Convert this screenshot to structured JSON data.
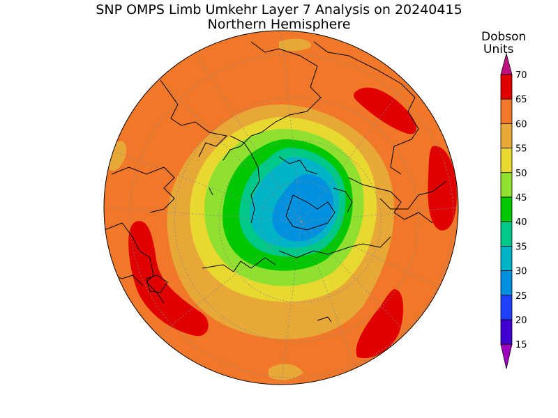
{
  "title": "SNP OMPS Limb Umkehr Layer 7 Analysis on 20240415",
  "subtitle": "Northern Hemisphere",
  "colorbar": {
    "label_line1": "Dobson",
    "label_line2": "Units",
    "ticks": [
      "70",
      "65",
      "60",
      "55",
      "50",
      "45",
      "40",
      "35",
      "30",
      "25",
      "20",
      "15"
    ],
    "colors": [
      "#e00000",
      "#f07828",
      "#e8a838",
      "#e8d830",
      "#90e030",
      "#00c800",
      "#00c888",
      "#00b4c8",
      "#0090e0",
      "#2040ff",
      "#4000d0",
      "#8000d8"
    ],
    "over_color": "#c01080",
    "under_color": "#a000c0"
  },
  "map": {
    "projection": "north-polar-stereographic",
    "hemisphere": "Northern Hemisphere",
    "background_level_color": "#f07828"
  }
}
